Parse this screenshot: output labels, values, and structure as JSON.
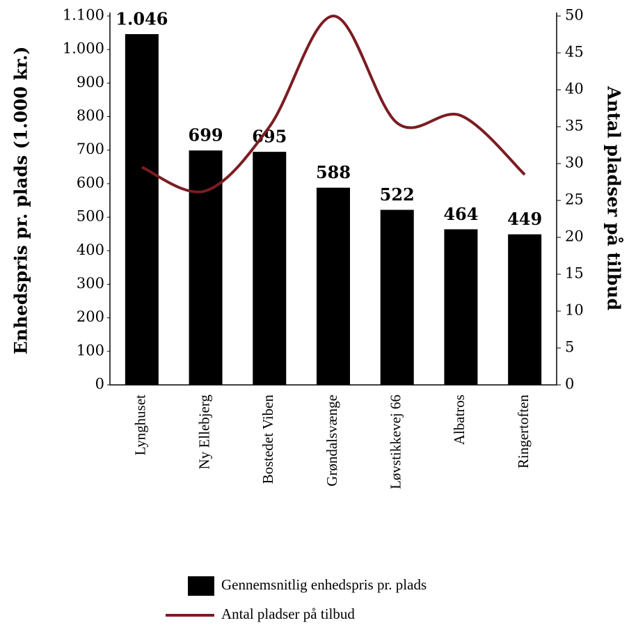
{
  "chart_data": {
    "type": "bar_line",
    "categories": [
      "Lynghuset",
      "Ny Ellebjerg",
      "Bostedet Viben",
      "Grøndalsvænge",
      "Løvstikkevej 66",
      "Albatros",
      "Ringertoften"
    ],
    "series": [
      {
        "name": "Gennemsnitlig enhedspris pr. plads",
        "type": "bar",
        "color": "#000000",
        "values": [
          1046,
          699,
          695,
          588,
          522,
          464,
          449
        ],
        "value_labels": [
          "1.046",
          "699",
          "695",
          "588",
          "522",
          "464",
          "449"
        ]
      },
      {
        "name": "Antal pladser på tilbud",
        "type": "line",
        "axis": "y2",
        "color": "#7b1c22",
        "values": [
          29.5,
          26.3,
          35,
          50,
          35.5,
          36.5,
          28.5
        ]
      }
    ],
    "ylabel": "Enhedspris pr. plads (1.000 kr.)",
    "y2label": "Antal pladser på tilbud",
    "ylim": [
      0,
      1100
    ],
    "yticks": [
      0,
      100,
      200,
      300,
      400,
      500,
      600,
      700,
      800,
      900,
      {
        "value": 1000,
        "label": "1.000"
      },
      {
        "value": 1100,
        "label": "1.100"
      }
    ],
    "y2lim": [
      0,
      50
    ],
    "y2ticks": [
      0,
      5,
      10,
      15,
      20,
      25,
      30,
      35,
      40,
      45,
      50
    ]
  }
}
